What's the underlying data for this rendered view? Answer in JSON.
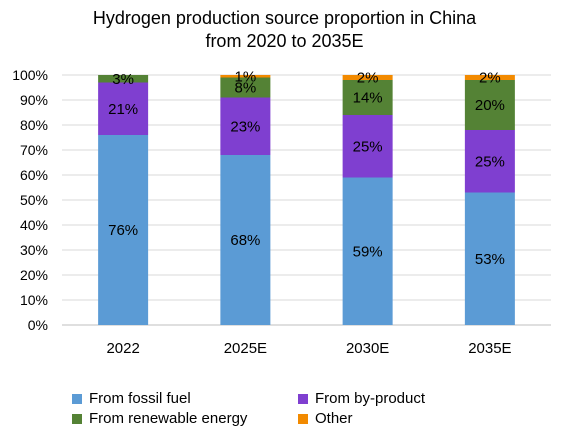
{
  "chart_data": {
    "type": "bar",
    "stacked": true,
    "title": "Hydrogen production source proportion  in China from 2020 to 2035E",
    "title_lines": [
      "Hydrogen production source proportion  in China",
      "from 2020 to 2035E"
    ],
    "xlabel": "",
    "ylabel": "",
    "categories": [
      "2022",
      "2025E",
      "2030E",
      "2035E"
    ],
    "ylim": [
      0,
      100
    ],
    "y_ticks": [
      "0%",
      "10%",
      "20%",
      "30%",
      "40%",
      "50%",
      "60%",
      "70%",
      "80%",
      "90%",
      "100%"
    ],
    "grid": true,
    "legend_position": "bottom",
    "series": [
      {
        "name": "From fossil fuel",
        "color": "#5B9BD5",
        "values": [
          76,
          68,
          59,
          53
        ],
        "labels": [
          "76%",
          "68%",
          "59%",
          "53%"
        ]
      },
      {
        "name": "From by-product",
        "color": "#7F3FD0",
        "values": [
          21,
          23,
          25,
          25
        ],
        "labels": [
          "21%",
          "23%",
          "25%",
          "25%"
        ]
      },
      {
        "name": "From renewable energy",
        "color": "#548235",
        "values": [
          3,
          8,
          14,
          20
        ],
        "labels": [
          "3%",
          "8%",
          "14%",
          "20%"
        ]
      },
      {
        "name": "Other",
        "color": "#F28A00",
        "values": [
          0,
          1,
          2,
          2
        ],
        "labels": [
          "",
          "1%",
          "2%",
          "2%"
        ]
      }
    ]
  }
}
